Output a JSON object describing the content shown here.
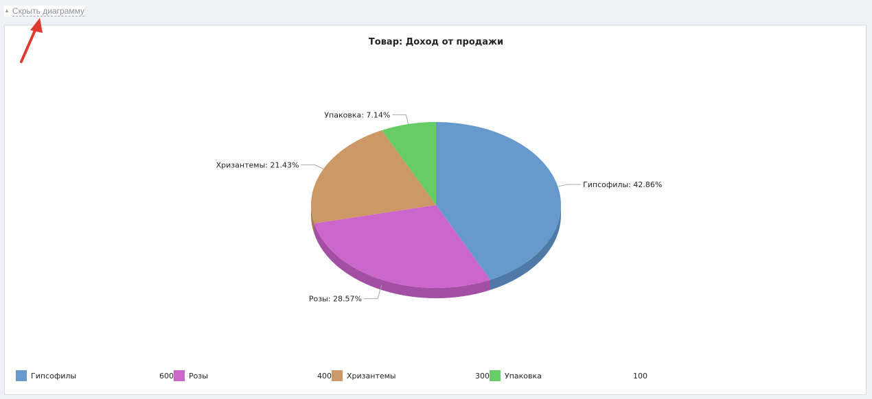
{
  "toggle": {
    "label": "Скрыть диаграмму"
  },
  "chart_data": {
    "type": "pie",
    "title": "Товар: Доход от продажи",
    "slices": [
      {
        "name": "Гипсофилы",
        "value": 600,
        "percent_label": "Гипсофилы: 42.86%",
        "color": "#6699cc",
        "side": "#4f7aa8"
      },
      {
        "name": "Розы",
        "value": 400,
        "percent_label": "Розы: 28.57%",
        "color": "#cc66cc",
        "side": "#a34fa3"
      },
      {
        "name": "Хризантемы",
        "value": 300,
        "percent_label": "Хризантемы: 21.43%",
        "color": "#cc9966",
        "side": "#a57a4f"
      },
      {
        "name": "Упаковка",
        "value": 100,
        "percent_label": "Упаковка: 7.14%",
        "color": "#66cc66",
        "side": "#4fa34f"
      }
    ],
    "legend_position": "bottom",
    "style": "3d"
  },
  "annotation": {
    "arrow_color": "#e03a2e"
  }
}
